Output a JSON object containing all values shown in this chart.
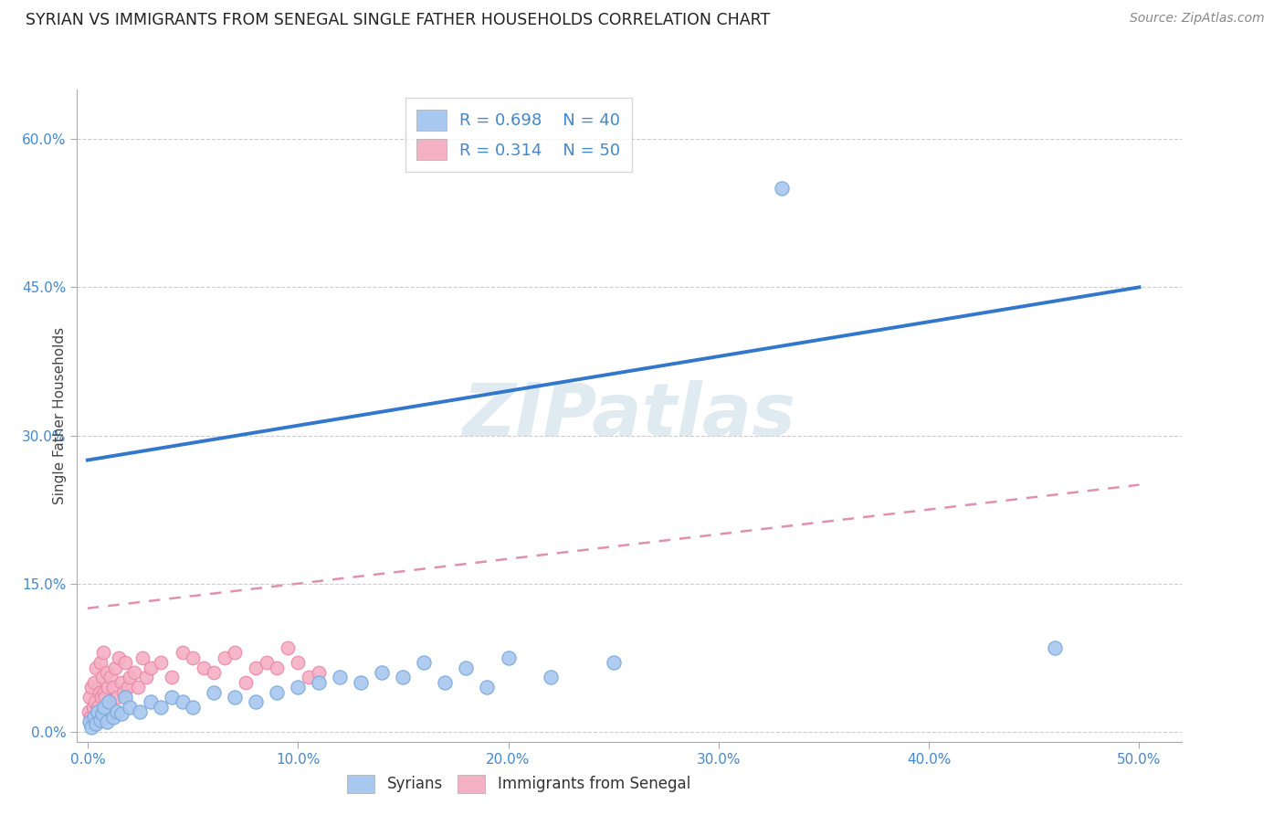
{
  "title": "SYRIAN VS IMMIGRANTS FROM SENEGAL SINGLE FATHER HOUSEHOLDS CORRELATION CHART",
  "source": "Source: ZipAtlas.com",
  "ylabel": "Single Father Households",
  "xlabel_ticks": [
    "0.0%",
    "10.0%",
    "20.0%",
    "30.0%",
    "40.0%",
    "50.0%"
  ],
  "xlabel_vals": [
    0.0,
    10.0,
    20.0,
    30.0,
    40.0,
    50.0
  ],
  "ylabel_ticks": [
    "0.0%",
    "15.0%",
    "30.0%",
    "45.0%",
    "60.0%"
  ],
  "ylabel_vals": [
    0.0,
    15.0,
    30.0,
    45.0,
    60.0
  ],
  "xlim": [
    -0.5,
    52.0
  ],
  "ylim": [
    -1.0,
    65.0
  ],
  "syrian_color": "#a8c8f0",
  "senegal_color": "#f5b0c5",
  "syrian_edge": "#7aa8d8",
  "senegal_edge": "#e888a8",
  "regression_blue": "#3377cc",
  "regression_pink": "#e090b0",
  "legend_blue_r": "R = 0.698",
  "legend_blue_n": "N = 40",
  "legend_pink_r": "R = 0.314",
  "legend_pink_n": "N = 50",
  "title_color": "#222222",
  "axis_label_color": "#4488cc",
  "watermark": "ZIPatlas",
  "watermark_color": "#ccdde8",
  "background_color": "#ffffff",
  "grid_color": "#cccccc",
  "blue_line_x0": 0.0,
  "blue_line_y0": 27.5,
  "blue_line_x1": 50.0,
  "blue_line_y1": 45.0,
  "pink_line_x0": 0.0,
  "pink_line_y0": 12.5,
  "pink_line_x1": 50.0,
  "pink_line_y1": 25.0,
  "syrian_scatter_x": [
    0.1,
    0.2,
    0.3,
    0.4,
    0.5,
    0.6,
    0.7,
    0.8,
    0.9,
    1.0,
    1.2,
    1.4,
    1.6,
    1.8,
    2.0,
    2.5,
    3.0,
    3.5,
    4.0,
    4.5,
    5.0,
    6.0,
    7.0,
    8.0,
    9.0,
    10.0,
    11.0,
    12.0,
    13.0,
    14.0,
    15.0,
    16.0,
    17.0,
    18.0,
    19.0,
    20.0,
    22.0,
    25.0,
    33.0,
    46.0
  ],
  "syrian_scatter_y": [
    1.0,
    0.5,
    1.5,
    0.8,
    2.0,
    1.2,
    1.8,
    2.5,
    1.0,
    3.0,
    1.5,
    2.0,
    1.8,
    3.5,
    2.5,
    2.0,
    3.0,
    2.5,
    3.5,
    3.0,
    2.5,
    4.0,
    3.5,
    3.0,
    4.0,
    4.5,
    5.0,
    5.5,
    5.0,
    6.0,
    5.5,
    7.0,
    5.0,
    6.5,
    4.5,
    7.5,
    5.5,
    7.0,
    55.0,
    8.5
  ],
  "senegal_scatter_x": [
    0.05,
    0.1,
    0.15,
    0.2,
    0.25,
    0.3,
    0.35,
    0.4,
    0.5,
    0.55,
    0.6,
    0.65,
    0.7,
    0.75,
    0.8,
    0.85,
    0.9,
    0.95,
    1.0,
    1.1,
    1.2,
    1.3,
    1.4,
    1.5,
    1.6,
    1.7,
    1.8,
    1.9,
    2.0,
    2.2,
    2.4,
    2.6,
    2.8,
    3.0,
    3.5,
    4.0,
    4.5,
    5.0,
    5.5,
    6.0,
    6.5,
    7.0,
    7.5,
    8.0,
    8.5,
    9.0,
    9.5,
    10.0,
    10.5,
    11.0
  ],
  "senegal_scatter_y": [
    2.0,
    3.5,
    1.5,
    4.5,
    2.5,
    5.0,
    3.0,
    6.5,
    2.5,
    4.0,
    7.0,
    3.5,
    5.5,
    8.0,
    4.0,
    3.5,
    6.0,
    4.5,
    3.0,
    5.5,
    4.5,
    6.5,
    3.5,
    7.5,
    5.0,
    4.0,
    7.0,
    4.5,
    5.5,
    6.0,
    4.5,
    7.5,
    5.5,
    6.5,
    7.0,
    5.5,
    8.0,
    7.5,
    6.5,
    6.0,
    7.5,
    8.0,
    5.0,
    6.5,
    7.0,
    6.5,
    8.5,
    7.0,
    5.5,
    6.0
  ]
}
